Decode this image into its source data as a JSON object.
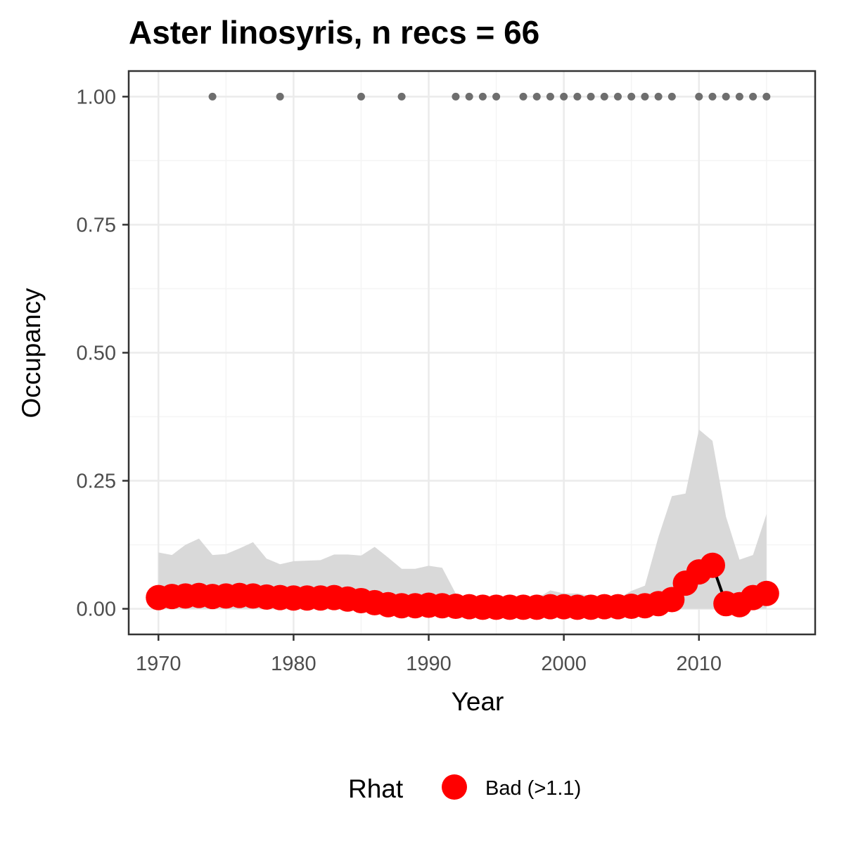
{
  "chart_data": {
    "type": "line",
    "title": "Aster linosyris, n recs = 66",
    "xlabel": "Year",
    "ylabel": "Occupancy",
    "xlim": [
      1967.8,
      2018.6
    ],
    "ylim": [
      -0.05,
      1.05
    ],
    "x_ticks": [
      {
        "value": 1970,
        "label": "1970"
      },
      {
        "value": 1980,
        "label": "1980"
      },
      {
        "value": 1990,
        "label": "1990"
      },
      {
        "value": 2000,
        "label": "2000"
      },
      {
        "value": 2010,
        "label": "2010"
      }
    ],
    "y_ticks": [
      {
        "value": 0,
        "label": "0.00"
      },
      {
        "value": 0.25,
        "label": "0.25"
      },
      {
        "value": 0.5,
        "label": "0.50"
      },
      {
        "value": 0.75,
        "label": "0.75"
      },
      {
        "value": 1.0,
        "label": "1.00"
      }
    ],
    "grid": true,
    "years": [
      1970,
      1971,
      1972,
      1973,
      1974,
      1975,
      1976,
      1977,
      1978,
      1979,
      1980,
      1981,
      1982,
      1983,
      1984,
      1985,
      1986,
      1987,
      1988,
      1989,
      1990,
      1991,
      1992,
      1993,
      1994,
      1995,
      1996,
      1997,
      1998,
      1999,
      2000,
      2001,
      2002,
      2003,
      2004,
      2005,
      2006,
      2007,
      2008,
      2009,
      2010,
      2011,
      2012,
      2013,
      2014,
      2015
    ],
    "occupancy": [
      0.022,
      0.024,
      0.025,
      0.026,
      0.024,
      0.025,
      0.026,
      0.025,
      0.023,
      0.022,
      0.021,
      0.021,
      0.021,
      0.022,
      0.019,
      0.016,
      0.012,
      0.008,
      0.006,
      0.006,
      0.007,
      0.006,
      0.005,
      0.004,
      0.003,
      0.003,
      0.003,
      0.003,
      0.003,
      0.004,
      0.004,
      0.003,
      0.003,
      0.004,
      0.004,
      0.005,
      0.006,
      0.01,
      0.018,
      0.05,
      0.072,
      0.085,
      0.01,
      0.008,
      0.022,
      0.03
    ],
    "ci_upper": [
      0.11,
      0.105,
      0.125,
      0.137,
      0.105,
      0.107,
      0.118,
      0.13,
      0.098,
      0.087,
      0.093,
      0.094,
      0.095,
      0.106,
      0.106,
      0.104,
      0.121,
      0.1,
      0.078,
      0.078,
      0.084,
      0.08,
      0.03,
      0.02,
      0.02,
      0.02,
      0.02,
      0.02,
      0.02,
      0.036,
      0.03,
      0.03,
      0.025,
      0.02,
      0.02,
      0.035,
      0.045,
      0.14,
      0.22,
      0.225,
      0.35,
      0.328,
      0.18,
      0.096,
      0.105,
      0.185
    ],
    "ci_lower": [
      0,
      0,
      0,
      0,
      0,
      0,
      0,
      0,
      0,
      0,
      0,
      0,
      0,
      0,
      0,
      0,
      0,
      0,
      0,
      0,
      0,
      0,
      0,
      0,
      0,
      0,
      0,
      0,
      0,
      0,
      0,
      0,
      0,
      0,
      0,
      0,
      0,
      0,
      0,
      0,
      0,
      0,
      0,
      0,
      0,
      0
    ],
    "record_years": [
      1974,
      1979,
      1985,
      1988,
      1992,
      1993,
      1994,
      1995,
      1997,
      1998,
      1999,
      2000,
      2001,
      2002,
      2003,
      2004,
      2005,
      2006,
      2007,
      2008,
      2010,
      2011,
      2012,
      2013,
      2014,
      2015
    ],
    "record_value": 1.0,
    "colors": {
      "points": "#ff0000",
      "line": "#000000",
      "ribbon": "#d9d9d9",
      "records": "#6e6e6e",
      "grid_major": "#ebebeb",
      "grid_minor": "#f4f4f4",
      "panel_border": "#333333"
    },
    "legend": {
      "title": "Rhat",
      "items": [
        {
          "label": "Bad (>1.1)",
          "color": "#ff0000"
        }
      ],
      "position": "bottom"
    }
  }
}
